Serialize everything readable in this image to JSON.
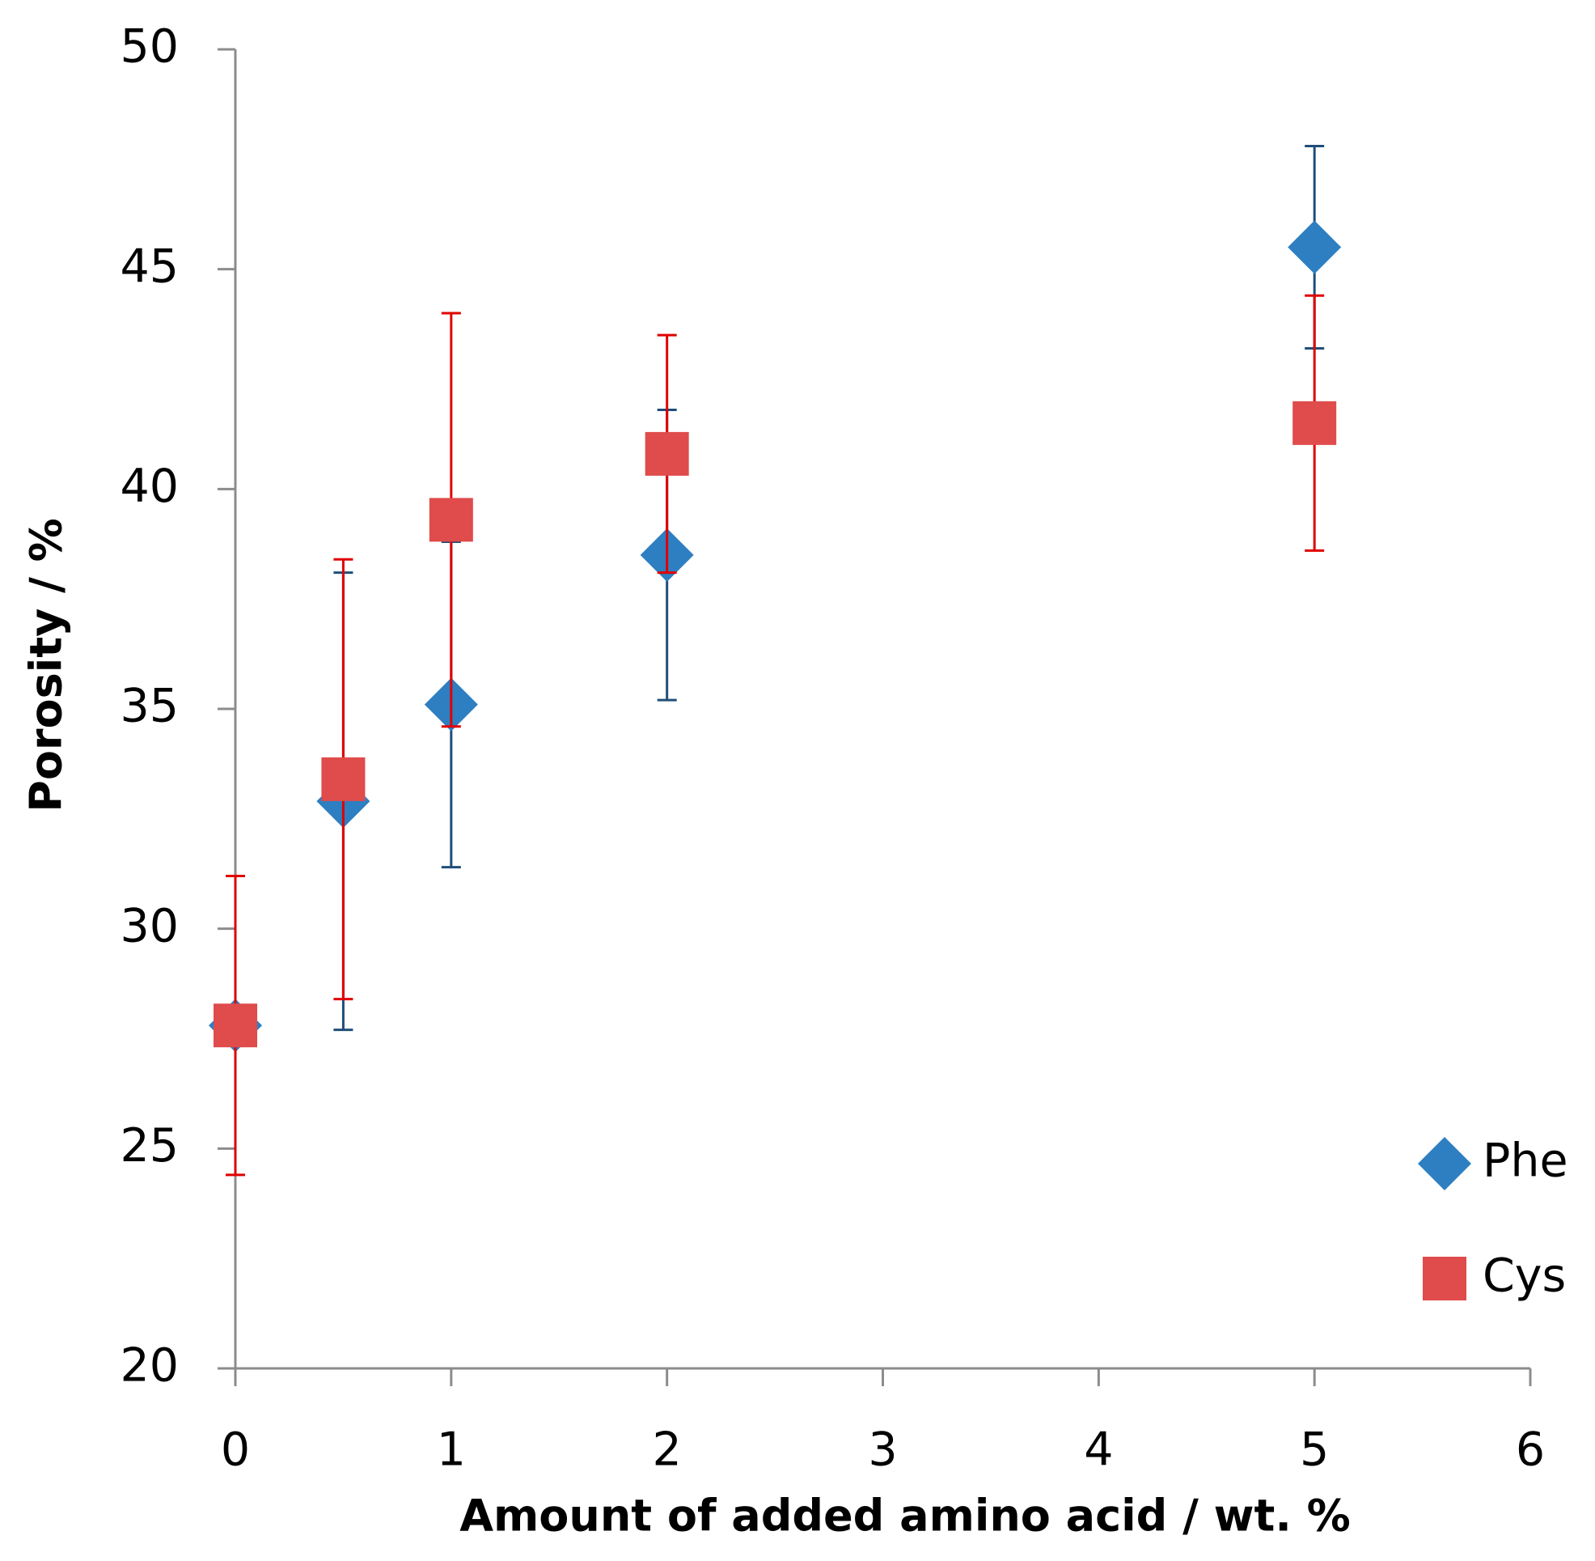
{
  "chart_data": {
    "type": "scatter",
    "x_label": "Amount of added amino acid / wt. %",
    "y_label": "Porosity / %",
    "xlim": [
      0,
      6
    ],
    "xticks": [
      0,
      1,
      2,
      3,
      4,
      5,
      6
    ],
    "ylim": [
      20,
      50
    ],
    "yticks": [
      20,
      25,
      30,
      35,
      40,
      45,
      50
    ],
    "grid": false,
    "legend": "lower right",
    "series": [
      {
        "name": "Phe",
        "color": "#2e7fc1",
        "error_color": "#1f4e79",
        "marker": "diamond",
        "x": [
          0,
          0.5,
          1,
          2,
          5
        ],
        "values": [
          27.8,
          32.9,
          35.1,
          38.5,
          45.5
        ],
        "errors": [
          0.3,
          5.2,
          3.7,
          3.3,
          2.3
        ]
      },
      {
        "name": "Cys",
        "color": "#e04b4b",
        "error_color": "#e00000",
        "marker": "square",
        "x": [
          0,
          0.5,
          1,
          2,
          5
        ],
        "values": [
          27.8,
          33.4,
          39.3,
          40.8,
          41.5
        ],
        "errors": [
          3.4,
          5.0,
          4.7,
          2.7,
          2.9
        ]
      }
    ]
  }
}
